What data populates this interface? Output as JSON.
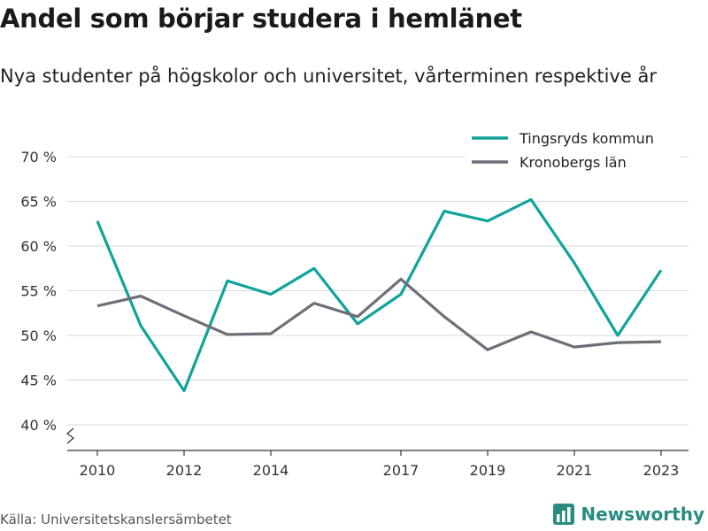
{
  "title": "Andel som börjar studera i hemlänet",
  "subtitle": "Nya studenter på högskolor och universitet, vårterminen respektive år",
  "source": "Källa: Universitetskanslersämbetet",
  "brand": {
    "name": "Newsworthy",
    "icon": "newsworthy-logo-icon"
  },
  "colors": {
    "tingsryd": "#10a39a",
    "kronoberg": "#6e6e78",
    "grid": "#d9d9d9",
    "brand": "#2a8c80"
  },
  "chart_data": {
    "type": "line",
    "title": "Andel som börjar studera i hemlänet",
    "subtitle": "Nya studenter på högskolor och universitet, vårterminen respektive år",
    "x": [
      2010,
      2011,
      2012,
      2013,
      2014,
      2015,
      2016,
      2017,
      2018,
      2019,
      2020,
      2021,
      2022,
      2023
    ],
    "x_ticks": [
      "2010",
      "2012",
      "2014",
      "2017",
      "2019",
      "2021",
      "2023"
    ],
    "y_ticks": [
      "40 %",
      "45 %",
      "50 %",
      "55 %",
      "60 %",
      "65 %",
      "70 %"
    ],
    "ylim": [
      40,
      70
    ],
    "axis_break": true,
    "grid": true,
    "legend_position": "top-right",
    "series": [
      {
        "name": "Tingsryds kommun",
        "color": "#10a39a",
        "values": [
          62.8,
          51.1,
          43.8,
          56.1,
          54.6,
          57.5,
          51.3,
          54.6,
          63.9,
          62.8,
          65.2,
          58.1,
          50.0,
          57.3
        ]
      },
      {
        "name": "Kronobergs län",
        "color": "#6e6e78",
        "values": [
          53.3,
          54.4,
          52.2,
          50.1,
          50.2,
          53.6,
          52.1,
          56.3,
          52.1,
          48.4,
          50.4,
          48.7,
          49.2,
          49.3
        ]
      }
    ]
  }
}
